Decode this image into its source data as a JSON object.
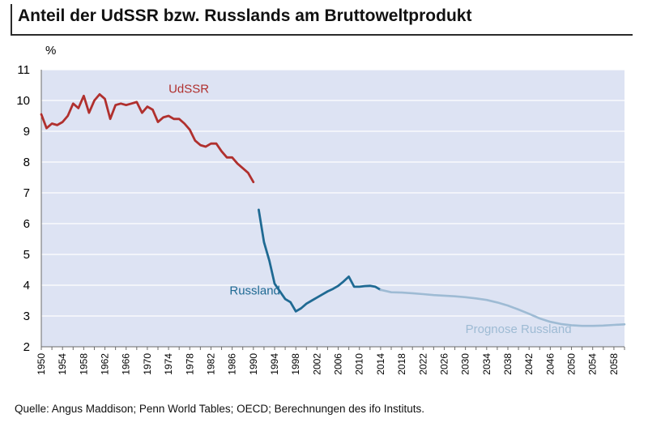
{
  "header": {
    "title": "Anteil der UdSSR bzw. Russlands am Bruttoweltprodukt",
    "unit": "%"
  },
  "footer": {
    "source": "Quelle: Angus Maddison; Penn World Tables; OECD; Berechnungen des ifo Instituts."
  },
  "colors": {
    "plot_background": "#dde3f3",
    "gridline": "#ffffff",
    "udssr": "#b0302e",
    "russland": "#1f6a93",
    "prognose": "#9ebbd4"
  },
  "chart_data": {
    "type": "line",
    "title": "Anteil der UdSSR bzw. Russlands am Bruttoweltprodukt",
    "ylabel": "%",
    "xlabel": "",
    "ylim": [
      2,
      11
    ],
    "xlim": [
      1950,
      2060
    ],
    "grid": true,
    "y_ticks": [
      2,
      3,
      4,
      5,
      6,
      7,
      8,
      9,
      10,
      11
    ],
    "x_ticks": [
      1950,
      1954,
      1958,
      1962,
      1966,
      1970,
      1974,
      1978,
      1982,
      1986,
      1990,
      1994,
      1998,
      2002,
      2006,
      2010,
      2014,
      2018,
      2022,
      2026,
      2030,
      2034,
      2038,
      2042,
      2046,
      2050,
      2054,
      2058
    ],
    "series": [
      {
        "name": "UdSSR",
        "color": "#b0302e",
        "x": [
          1950,
          1951,
          1952,
          1953,
          1954,
          1955,
          1956,
          1957,
          1958,
          1959,
          1960,
          1961,
          1962,
          1963,
          1964,
          1965,
          1966,
          1967,
          1968,
          1969,
          1970,
          1971,
          1972,
          1973,
          1974,
          1975,
          1976,
          1977,
          1978,
          1979,
          1980,
          1981,
          1982,
          1983,
          1984,
          1985,
          1986,
          1987,
          1988,
          1989,
          1990
        ],
        "y": [
          9.55,
          9.1,
          9.25,
          9.2,
          9.3,
          9.5,
          9.9,
          9.75,
          10.15,
          9.6,
          10.0,
          10.2,
          10.05,
          9.4,
          9.85,
          9.9,
          9.85,
          9.9,
          9.95,
          9.6,
          9.8,
          9.7,
          9.3,
          9.45,
          9.5,
          9.4,
          9.4,
          9.25,
          9.05,
          8.7,
          8.55,
          8.5,
          8.6,
          8.6,
          8.35,
          8.15,
          8.15,
          7.95,
          7.8,
          7.65,
          7.35
        ]
      },
      {
        "name": "Russland",
        "color": "#1f6a93",
        "x": [
          1991,
          1992,
          1993,
          1994,
          1995,
          1996,
          1997,
          1998,
          1999,
          2000,
          2001,
          2002,
          2003,
          2004,
          2005,
          2006,
          2007,
          2008,
          2009,
          2010,
          2011,
          2012,
          2013,
          2014
        ],
        "y": [
          6.45,
          5.4,
          4.8,
          4.05,
          3.8,
          3.55,
          3.45,
          3.15,
          3.25,
          3.4,
          3.5,
          3.6,
          3.7,
          3.8,
          3.88,
          3.98,
          4.12,
          4.28,
          3.95,
          3.95,
          3.97,
          3.98,
          3.95,
          3.85
        ]
      },
      {
        "name": "Prognose Russland",
        "color": "#9ebbd4",
        "x": [
          2014,
          2016,
          2018,
          2020,
          2022,
          2024,
          2026,
          2028,
          2030,
          2032,
          2034,
          2036,
          2038,
          2040,
          2042,
          2044,
          2046,
          2048,
          2050,
          2052,
          2054,
          2056,
          2058,
          2060
        ],
        "y": [
          3.85,
          3.77,
          3.76,
          3.74,
          3.71,
          3.68,
          3.66,
          3.64,
          3.61,
          3.57,
          3.52,
          3.44,
          3.34,
          3.21,
          3.07,
          2.92,
          2.81,
          2.74,
          2.7,
          2.68,
          2.68,
          2.69,
          2.71,
          2.73
        ]
      }
    ],
    "annotations": [
      {
        "text": "UdSSR",
        "x": 1974,
        "y": 10.25,
        "series": "UdSSR"
      },
      {
        "text": "Russland",
        "x": 1985.5,
        "y": 3.7,
        "series": "Russland"
      },
      {
        "text": "Prognose Russland",
        "x": 2030,
        "y": 2.45,
        "series": "Prognose Russland"
      }
    ]
  }
}
